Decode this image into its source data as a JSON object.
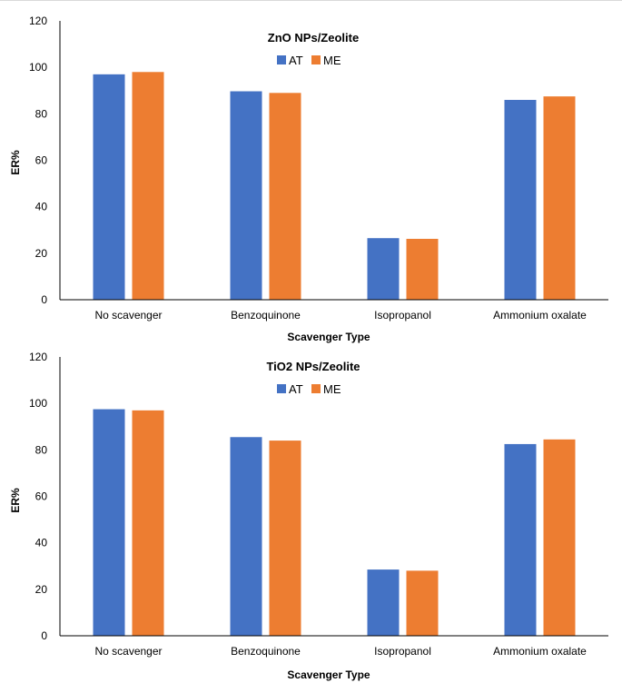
{
  "colors": {
    "AT": "#4472C4",
    "ME": "#ED7D31",
    "axis": "#000000"
  },
  "chart_data": [
    {
      "type": "bar",
      "title": "ZnO NPs/Zeolite",
      "xlabel": "Scavenger Type",
      "ylabel": "ER%",
      "ylim": [
        0,
        120
      ],
      "yticks": [
        "0",
        "20",
        "40",
        "60",
        "80",
        "100",
        "120"
      ],
      "legend_position": "top-center",
      "grid": false,
      "categories": [
        "No scavenger",
        "Benzoquinone",
        "Isopropanol",
        "Ammonium oxalate"
      ],
      "series": [
        {
          "name": "AT",
          "values": [
            97,
            89.7,
            26.5,
            86
          ]
        },
        {
          "name": "ME",
          "values": [
            98,
            89,
            26.2,
            87.5
          ]
        }
      ]
    },
    {
      "type": "bar",
      "title": "TiO2 NPs/Zeolite",
      "xlabel": "Scavenger Type",
      "ylabel": "ER%",
      "ylim": [
        0,
        120
      ],
      "yticks": [
        "0",
        "20",
        "40",
        "60",
        "80",
        "100",
        "120"
      ],
      "legend_position": "top-center",
      "grid": false,
      "categories": [
        "No scavenger",
        "Benzoquinone",
        "Isopropanol",
        "Ammonium oxalate"
      ],
      "series": [
        {
          "name": "AT",
          "values": [
            97.5,
            85.5,
            28.5,
            82.5
          ]
        },
        {
          "name": "ME",
          "values": [
            97,
            84,
            28,
            84.5
          ]
        }
      ]
    }
  ]
}
